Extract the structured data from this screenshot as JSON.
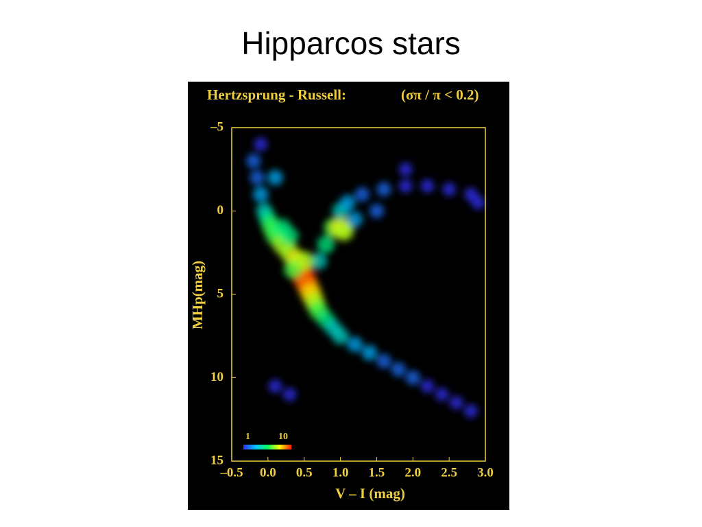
{
  "slide": {
    "title": "Hipparcos stars"
  },
  "chart_data": {
    "type": "scatter",
    "title": "Hertzsprung - Russell:",
    "subtitle": "(σπ / π < 0.2)",
    "xlabel": "V – I  (mag)",
    "ylabel": "MHp(mag)",
    "x": [
      -0.2,
      -0.15,
      -0.1,
      -0.05,
      0,
      0.05,
      0.1,
      0.2,
      0.3,
      0.4,
      0.45,
      0.5,
      0.55,
      0.6,
      0.65,
      0.7,
      0.8,
      0.9,
      1.0,
      1.2,
      1.4,
      1.6,
      1.8,
      2.0,
      2.2,
      2.4,
      2.6,
      2.8,
      0.7,
      0.8,
      0.9,
      1.0,
      1.05,
      1.0,
      1.1,
      1.3,
      1.6,
      1.9,
      2.2,
      2.5,
      2.8,
      1.2,
      1.5,
      -0.1,
      0.1,
      0.2,
      0.3,
      0.35,
      0.5,
      0.3,
      0.1,
      2.9,
      1.9
    ],
    "values": [
      -3,
      -2,
      -1,
      0,
      0.5,
      1,
      1.5,
      2,
      2.5,
      3,
      3.5,
      4,
      4.5,
      5,
      5.5,
      6,
      6.5,
      7,
      7.5,
      8,
      8.5,
      9,
      9.5,
      10,
      10.5,
      11,
      11.5,
      12,
      3,
      2,
      1,
      1,
      1.2,
      0,
      -0.5,
      -1,
      -1.3,
      -1.5,
      -1.5,
      -1.3,
      -1,
      0.5,
      0,
      -4,
      -2,
      1,
      1.5,
      3.5,
      3,
      11,
      10.5,
      -0.5,
      -2.5
    ],
    "density": [
      2,
      2,
      3,
      4,
      5,
      6,
      6,
      7,
      7,
      8,
      9,
      10,
      9,
      8,
      7,
      6,
      5,
      4,
      4,
      3,
      3,
      2,
      2,
      2,
      1,
      1,
      1,
      1,
      4,
      5,
      6,
      8,
      7,
      4,
      3,
      2,
      2,
      1,
      1,
      1,
      1,
      3,
      2,
      1,
      3,
      5,
      5,
      6,
      7,
      1,
      1,
      1,
      1
    ],
    "xlim": [
      -0.5,
      3.0
    ],
    "ylim": [
      -5,
      15
    ],
    "xticks": [
      {
        "value": -0.5,
        "label": "–0.5"
      },
      {
        "value": 0,
        "label": "0.0"
      },
      0.5,
      {
        "value": 1,
        "label": "1.0"
      },
      1.5,
      {
        "value": 2,
        "label": "2.0"
      },
      2.5,
      {
        "value": 3,
        "label": "3.0"
      }
    ],
    "yticks": [
      {
        "value": -5,
        "label": "–5"
      },
      0,
      5,
      10,
      15
    ],
    "clim": [
      1,
      10
    ],
    "cticks": [
      1,
      10
    ],
    "colors": [
      "#3030ff",
      "#00c0ff",
      "#00ff60",
      "#ffff00",
      "#ff2000"
    ],
    "axis_color": "#f0d040",
    "background": "#000000"
  }
}
